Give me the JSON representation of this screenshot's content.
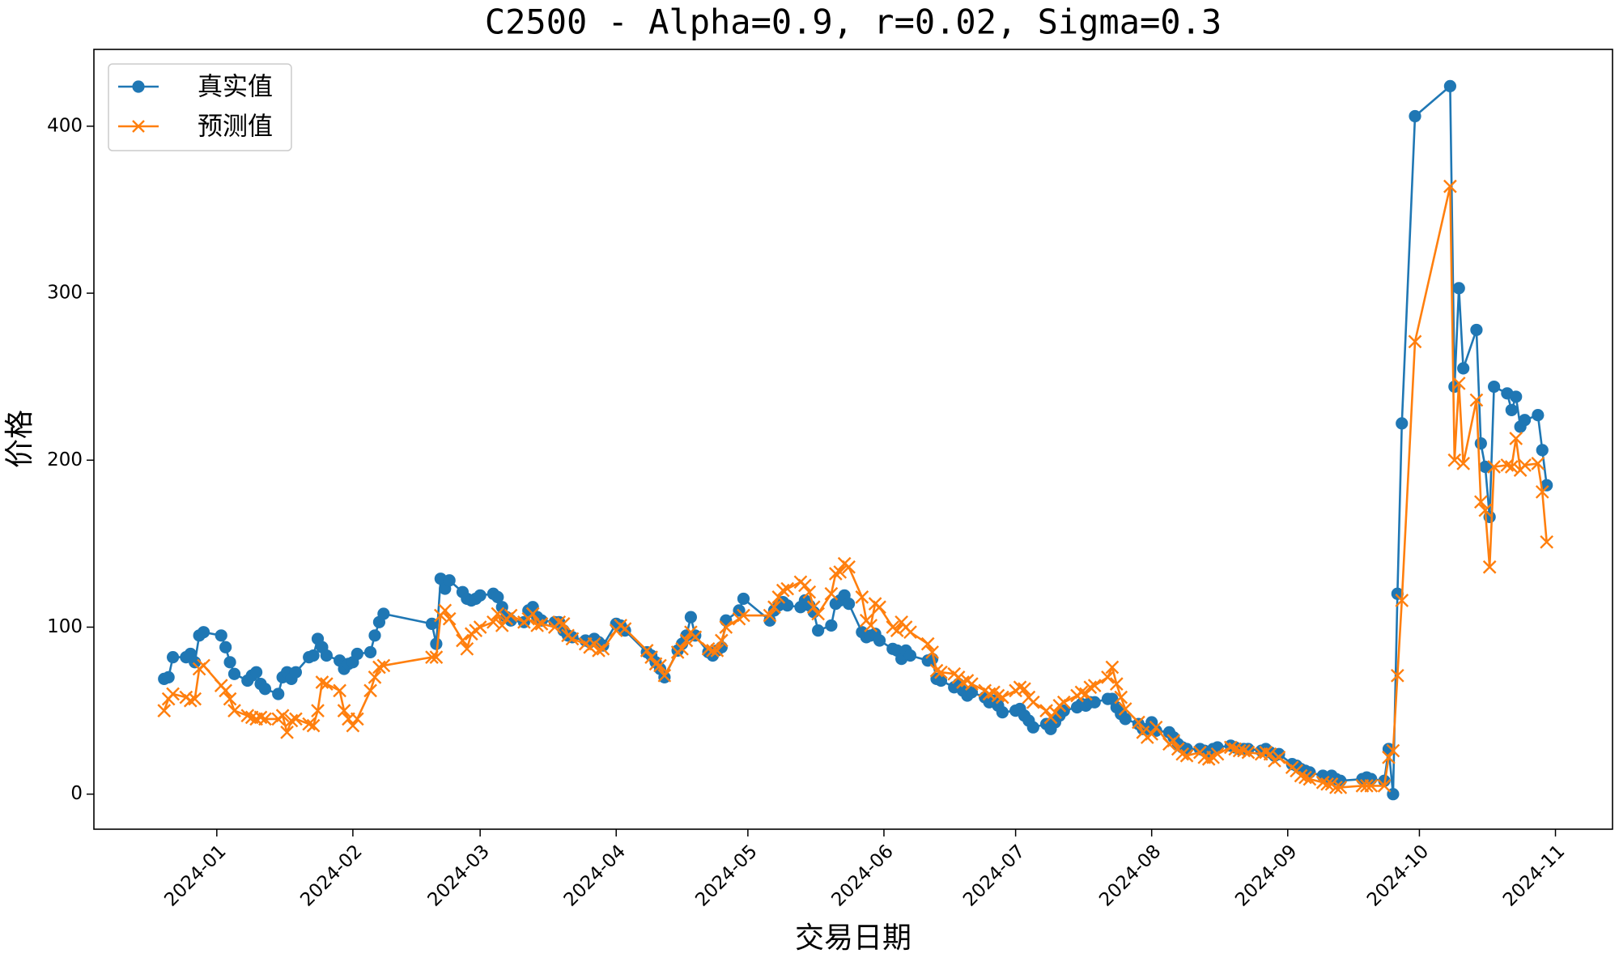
{
  "chart_data": {
    "type": "line",
    "title": "C2500 - Alpha=0.9, r=0.02, Sigma=0.3",
    "x_label": "交易日期",
    "y_label": "价格",
    "legend": "upper left",
    "x": [
      "2023-12-20",
      "2023-12-21",
      "2023-12-22",
      "2023-12-25",
      "2023-12-26",
      "2023-12-27",
      "2023-12-28",
      "2023-12-29",
      "2024-01-02",
      "2024-01-03",
      "2024-01-04",
      "2024-01-05",
      "2024-01-08",
      "2024-01-09",
      "2024-01-10",
      "2024-01-11",
      "2024-01-12",
      "2024-01-15",
      "2024-01-16",
      "2024-01-17",
      "2024-01-18",
      "2024-01-19",
      "2024-01-22",
      "2024-01-23",
      "2024-01-24",
      "2024-01-25",
      "2024-01-26",
      "2024-01-29",
      "2024-01-30",
      "2024-01-31",
      "2024-02-01",
      "2024-02-02",
      "2024-02-05",
      "2024-02-06",
      "2024-02-07",
      "2024-02-08",
      "2024-02-19",
      "2024-02-20",
      "2024-02-21",
      "2024-02-22",
      "2024-02-23",
      "2024-02-26",
      "2024-02-27",
      "2024-02-28",
      "2024-02-29",
      "2024-03-01",
      "2024-03-04",
      "2024-03-05",
      "2024-03-06",
      "2024-03-07",
      "2024-03-08",
      "2024-03-11",
      "2024-03-12",
      "2024-03-13",
      "2024-03-14",
      "2024-03-15",
      "2024-03-18",
      "2024-03-19",
      "2024-03-20",
      "2024-03-21",
      "2024-03-22",
      "2024-03-25",
      "2024-03-26",
      "2024-03-27",
      "2024-03-28",
      "2024-03-29",
      "2024-04-01",
      "2024-04-02",
      "2024-04-03",
      "2024-04-08",
      "2024-04-09",
      "2024-04-10",
      "2024-04-11",
      "2024-04-12",
      "2024-04-15",
      "2024-04-16",
      "2024-04-17",
      "2024-04-18",
      "2024-04-19",
      "2024-04-22",
      "2024-04-23",
      "2024-04-24",
      "2024-04-25",
      "2024-04-26",
      "2024-04-29",
      "2024-04-30",
      "2024-05-06",
      "2024-05-07",
      "2024-05-08",
      "2024-05-09",
      "2024-05-10",
      "2024-05-13",
      "2024-05-14",
      "2024-05-15",
      "2024-05-16",
      "2024-05-17",
      "2024-05-20",
      "2024-05-21",
      "2024-05-22",
      "2024-05-23",
      "2024-05-24",
      "2024-05-27",
      "2024-05-28",
      "2024-05-29",
      "2024-05-30",
      "2024-05-31",
      "2024-06-03",
      "2024-06-04",
      "2024-06-05",
      "2024-06-06",
      "2024-06-07",
      "2024-06-11",
      "2024-06-12",
      "2024-06-13",
      "2024-06-14",
      "2024-06-17",
      "2024-06-18",
      "2024-06-19",
      "2024-06-20",
      "2024-06-21",
      "2024-06-24",
      "2024-06-25",
      "2024-06-26",
      "2024-06-27",
      "2024-06-28",
      "2024-07-01",
      "2024-07-02",
      "2024-07-03",
      "2024-07-04",
      "2024-07-05",
      "2024-07-08",
      "2024-07-09",
      "2024-07-10",
      "2024-07-11",
      "2024-07-12",
      "2024-07-15",
      "2024-07-16",
      "2024-07-17",
      "2024-07-18",
      "2024-07-19",
      "2024-07-22",
      "2024-07-23",
      "2024-07-24",
      "2024-07-25",
      "2024-07-26",
      "2024-07-29",
      "2024-07-30",
      "2024-07-31",
      "2024-08-01",
      "2024-08-02",
      "2024-08-05",
      "2024-08-06",
      "2024-08-07",
      "2024-08-08",
      "2024-08-09",
      "2024-08-12",
      "2024-08-13",
      "2024-08-14",
      "2024-08-15",
      "2024-08-16",
      "2024-08-19",
      "2024-08-20",
      "2024-08-21",
      "2024-08-22",
      "2024-08-23",
      "2024-08-26",
      "2024-08-27",
      "2024-08-28",
      "2024-08-29",
      "2024-08-30",
      "2024-09-02",
      "2024-09-03",
      "2024-09-04",
      "2024-09-05",
      "2024-09-06",
      "2024-09-09",
      "2024-09-10",
      "2024-09-11",
      "2024-09-12",
      "2024-09-13",
      "2024-09-18",
      "2024-09-19",
      "2024-09-20",
      "2024-09-23",
      "2024-09-24",
      "2024-09-25",
      "2024-09-26",
      "2024-09-27",
      "2024-09-30",
      "2024-10-08",
      "2024-10-09",
      "2024-10-10",
      "2024-10-11",
      "2024-10-14",
      "2024-10-15",
      "2024-10-16",
      "2024-10-17",
      "2024-10-18",
      "2024-10-21",
      "2024-10-22",
      "2024-10-23",
      "2024-10-24",
      "2024-10-25",
      "2024-10-28",
      "2024-10-29",
      "2024-10-30"
    ],
    "series": [
      {
        "name": "真实值",
        "color": "#1f77b4",
        "marker": "o",
        "values": [
          69,
          70,
          82,
          82,
          84,
          79,
          95,
          97,
          95,
          88,
          79,
          72,
          68,
          71,
          73,
          66,
          63,
          60,
          70,
          73,
          69,
          73,
          82,
          83,
          93,
          88,
          83,
          80,
          75,
          78,
          79,
          84,
          85,
          95,
          103,
          108,
          102,
          90,
          129,
          123,
          128,
          121,
          117,
          116,
          117,
          119,
          120,
          118,
          112,
          106,
          104,
          103,
          110,
          112,
          106,
          104,
          103,
          103,
          98,
          95,
          94,
          92,
          91,
          93,
          91,
          89,
          102,
          101,
          98,
          85,
          83,
          79,
          75,
          70,
          86,
          90,
          95,
          106,
          95,
          85,
          83,
          86,
          88,
          104,
          110,
          117,
          104,
          110,
          113,
          115,
          113,
          112,
          116,
          113,
          109,
          98,
          101,
          114,
          116,
          119,
          114,
          97,
          94,
          95,
          96,
          92,
          87,
          86,
          81,
          86,
          83,
          80,
          81,
          69,
          68,
          64,
          66,
          62,
          59,
          61,
          58,
          55,
          56,
          53,
          49,
          50,
          51,
          47,
          44,
          40,
          42,
          39,
          43,
          47,
          50,
          52,
          54,
          53,
          55,
          55,
          57,
          57,
          52,
          48,
          45,
          42,
          39,
          39,
          43,
          38,
          37,
          34,
          30,
          28,
          27,
          27,
          26,
          25,
          27,
          28,
          29,
          28,
          27,
          27,
          27,
          26,
          27,
          25,
          23,
          24,
          18,
          17,
          15,
          14,
          13,
          11,
          10,
          11,
          9,
          8,
          9,
          10,
          9,
          8,
          27,
          0,
          120,
          222,
          406,
          424,
          244,
          303,
          255,
          278,
          210,
          196,
          166,
          244,
          240,
          230,
          238,
          220,
          224,
          227,
          206,
          185
        ]
      },
      {
        "name": "预测值",
        "color": "#ff7f0e",
        "marker": "x",
        "values": [
          50,
          57,
          60,
          58,
          56,
          57,
          75,
          77,
          65,
          62,
          57,
          50,
          47,
          46,
          45,
          46,
          45,
          45,
          47,
          37,
          44,
          45,
          42,
          41,
          50,
          67,
          66,
          62,
          50,
          45,
          41,
          45,
          62,
          70,
          76,
          77,
          82,
          82,
          107,
          110,
          105,
          92,
          87,
          96,
          98,
          100,
          103,
          108,
          101,
          105,
          107,
          103,
          105,
          108,
          101,
          102,
          100,
          103,
          102,
          95,
          93,
          90,
          88,
          90,
          86,
          87,
          98,
          101,
          99,
          86,
          82,
          78,
          77,
          71,
          85,
          87,
          92,
          97,
          94,
          87,
          86,
          86,
          92,
          100,
          105,
          107,
          107,
          112,
          118,
          122,
          123,
          127,
          125,
          121,
          112,
          108,
          120,
          132,
          133,
          138,
          136,
          118,
          104,
          101,
          114,
          112,
          100,
          98,
          103,
          100,
          97,
          90,
          85,
          74,
          73,
          72,
          70,
          67,
          68,
          66,
          62,
          60,
          61,
          59,
          58,
          62,
          64,
          63,
          58,
          55,
          50,
          46,
          49,
          53,
          55,
          59,
          61,
          60,
          64,
          65,
          70,
          76,
          66,
          58,
          51,
          43,
          37,
          34,
          36,
          40,
          30,
          32,
          27,
          24,
          23,
          25,
          22,
          21,
          22,
          24,
          28,
          27,
          26,
          26,
          25,
          24,
          25,
          24,
          20,
          22,
          16,
          14,
          11,
          10,
          9,
          7,
          6,
          6,
          4,
          4,
          5,
          5,
          5,
          5,
          22,
          26,
          71,
          116,
          271,
          364,
          200,
          246,
          198,
          236,
          175,
          170,
          136,
          196,
          197,
          196,
          213,
          194,
          197,
          198,
          181,
          151
        ]
      }
    ],
    "xlim": [
      "2023-12-04",
      "2024-11-14"
    ],
    "xticks": [
      {
        "value": "2024-01-01",
        "label": "2024-01"
      },
      {
        "value": "2024-02-01",
        "label": "2024-02"
      },
      {
        "value": "2024-03-01",
        "label": "2024-03"
      },
      {
        "value": "2024-04-01",
        "label": "2024-04"
      },
      {
        "value": "2024-05-01",
        "label": "2024-05"
      },
      {
        "value": "2024-06-01",
        "label": "2024-06"
      },
      {
        "value": "2024-07-01",
        "label": "2024-07"
      },
      {
        "value": "2024-08-01",
        "label": "2024-08"
      },
      {
        "value": "2024-09-01",
        "label": "2024-09"
      },
      {
        "value": "2024-10-01",
        "label": "2024-10"
      },
      {
        "value": "2024-11-01",
        "label": "2024-11"
      }
    ],
    "ylim": [
      -21,
      446
    ],
    "yticks": [
      0,
      100,
      200,
      300,
      400
    ]
  }
}
